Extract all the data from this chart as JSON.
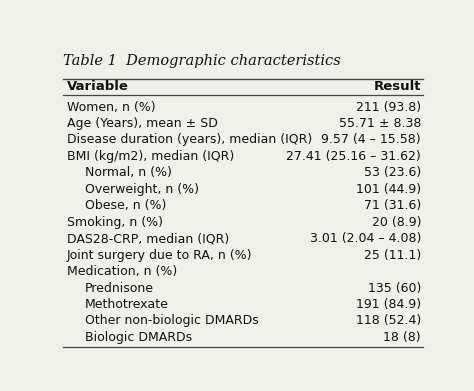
{
  "title": "Table 1  Demographic characteristics",
  "col_headers": [
    "Variable",
    "Result"
  ],
  "rows": [
    {
      "var": "Women, n (%)",
      "result": "211 (93.8)",
      "indent": 0
    },
    {
      "var": "Age (Years), mean ± SD",
      "result": "55.71 ± 8.38",
      "indent": 0
    },
    {
      "var": "Disease duration (years), median (IQR)",
      "result": "9.57 (4 – 15.58)",
      "indent": 0
    },
    {
      "var": "BMI (kg/m2), median (IQR)",
      "result": "27.41 (25.16 – 31.62)",
      "indent": 0
    },
    {
      "var": "Normal, n (%)",
      "result": "53 (23.6)",
      "indent": 1
    },
    {
      "var": "Overweight, n (%)",
      "result": "101 (44.9)",
      "indent": 1
    },
    {
      "var": "Obese, n (%)",
      "result": "71 (31.6)",
      "indent": 1
    },
    {
      "var": "Smoking, n (%)",
      "result": "20 (8.9)",
      "indent": 0
    },
    {
      "var": "DAS28-CRP, median (IQR)",
      "result": "3.01 (2.04 – 4.08)",
      "indent": 0
    },
    {
      "var": "Joint surgery due to RA, n (%)",
      "result": "25 (11.1)",
      "indent": 0
    },
    {
      "var": "Medication, n (%)",
      "result": "",
      "indent": 0
    },
    {
      "var": "Prednisone",
      "result": "135 (60)",
      "indent": 1
    },
    {
      "var": "Methotrexate",
      "result": "191 (84.9)",
      "indent": 1
    },
    {
      "var": "Other non-biologic DMARDs",
      "result": "118 (52.4)",
      "indent": 1
    },
    {
      "var": "Biologic DMARDs",
      "result": "18 (8)",
      "indent": 1
    }
  ],
  "bg_color": "#f0f0eb",
  "title_fontsize": 10.5,
  "header_fontsize": 9.5,
  "row_fontsize": 9.0,
  "line_color": "#444444"
}
